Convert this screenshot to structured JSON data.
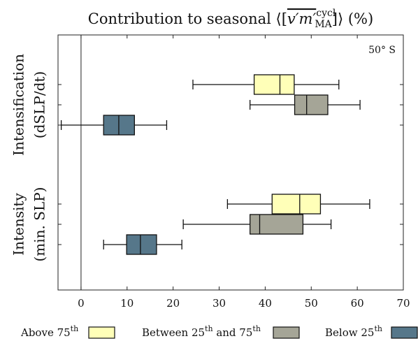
{
  "chart_data": {
    "type": "box",
    "title": {
      "text": "Contribution to seasonal",
      "open": "⟨[",
      "math": "v′m′",
      "sup": "cycl",
      "sub": "MA",
      "close": "]⟩",
      "unit": "(%)"
    },
    "annotation": "50° S",
    "orientation": "horizontal",
    "categories": [
      [
        "Intensification",
        "(dSLP/dt)"
      ],
      [
        "Intensity",
        "(min. SLP)"
      ]
    ],
    "xlim": [
      -5,
      70
    ],
    "xticks": [
      0,
      10,
      20,
      30,
      40,
      50,
      60,
      70
    ],
    "zero_line": true,
    "series": [
      {
        "name": [
          "Above 75",
          "th"
        ],
        "color": "#ffffb8",
        "values": [
          {
            "min": 24.3,
            "q1": 37.6,
            "median": 43.2,
            "q3": 46.3,
            "max": 56.0
          },
          {
            "min": 31.8,
            "q1": 41.5,
            "median": 47.5,
            "q3": 52.0,
            "max": 62.7
          }
        ]
      },
      {
        "name": [
          "Between 25",
          "th",
          " and 75",
          "th"
        ],
        "color": "#a5a597",
        "values": [
          {
            "min": 36.7,
            "q1": 46.4,
            "median": 49.0,
            "q3": 53.6,
            "max": 60.6
          },
          {
            "min": 22.2,
            "q1": 36.7,
            "median": 38.8,
            "q3": 48.2,
            "max": 54.3
          }
        ]
      },
      {
        "name": [
          "Below 25",
          "th"
        ],
        "color": "#56778a",
        "values": [
          {
            "min": -4.3,
            "q1": 4.9,
            "median": 8.2,
            "q3": 11.6,
            "max": 18.6
          },
          {
            "min": 4.9,
            "q1": 9.9,
            "median": 12.9,
            "q3": 16.4,
            "max": 21.9
          }
        ]
      }
    ]
  }
}
